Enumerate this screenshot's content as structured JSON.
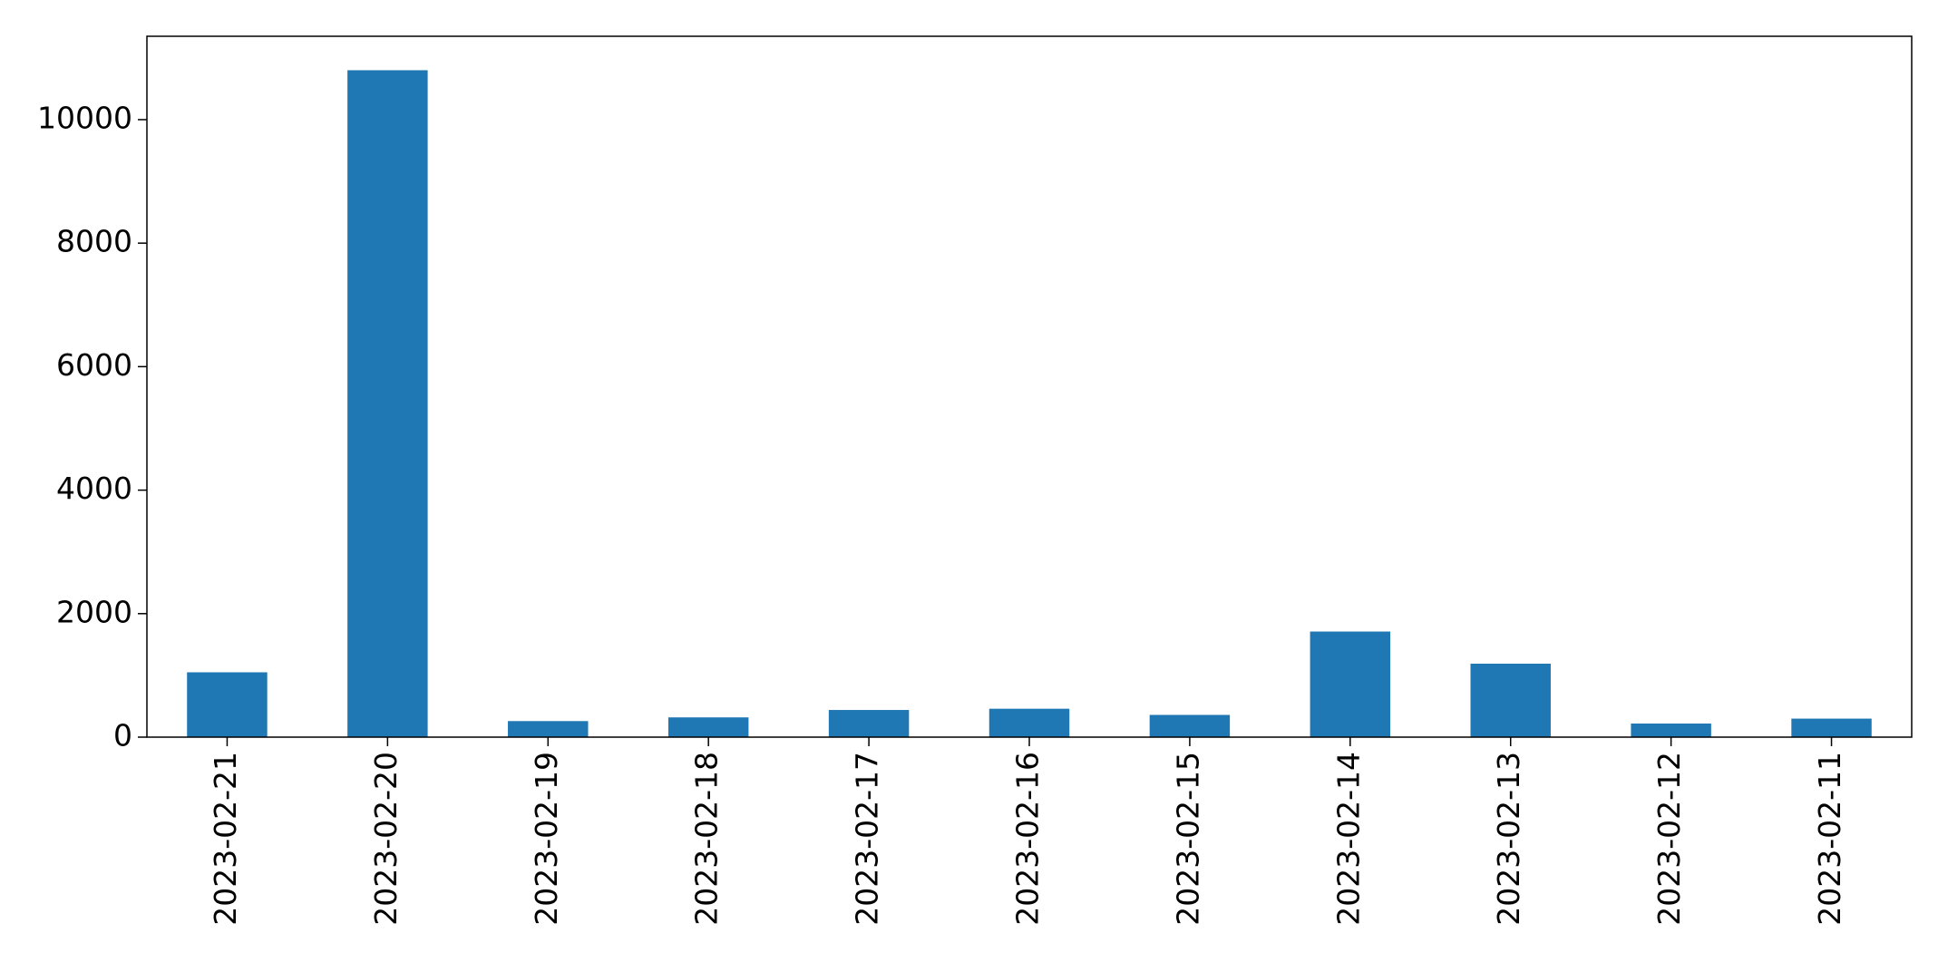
{
  "chart_data": {
    "type": "bar",
    "categories": [
      "2023-02-21",
      "2023-02-20",
      "2023-02-19",
      "2023-02-18",
      "2023-02-17",
      "2023-02-16",
      "2023-02-15",
      "2023-02-14",
      "2023-02-13",
      "2023-02-12",
      "2023-02-11"
    ],
    "values": [
      1050,
      10800,
      260,
      320,
      440,
      460,
      360,
      1710,
      1190,
      220,
      300
    ],
    "color": "#1f77b4",
    "ylim": [
      0,
      11350
    ],
    "yticks": [
      0,
      2000,
      4000,
      6000,
      8000,
      10000
    ],
    "grid": false
  }
}
